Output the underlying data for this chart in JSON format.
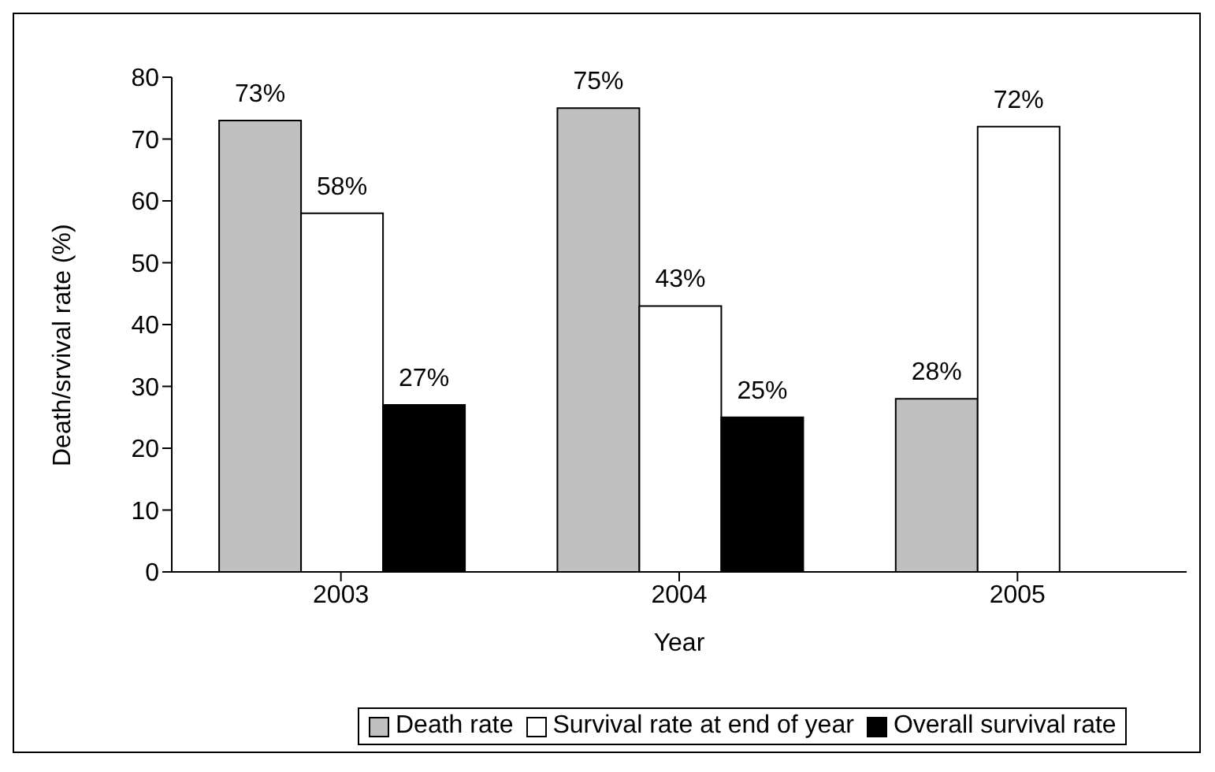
{
  "chart_data": {
    "type": "bar",
    "xlabel": "Year",
    "ylabel": "Death/srvival rate (%)",
    "categories": [
      "2003",
      "2004",
      "2005"
    ],
    "series": [
      {
        "name": "Death rate",
        "color": "#c0c0c0",
        "values": [
          73,
          75,
          28
        ],
        "value_labels": [
          "73%",
          "75%",
          "28%"
        ]
      },
      {
        "name": "Survival rate at end of year",
        "color": "#ffffff",
        "values": [
          58,
          43,
          72
        ],
        "value_labels": [
          "58%",
          "43%",
          "72%"
        ]
      },
      {
        "name": "Overall survival rate",
        "color": "#000000",
        "values": [
          27,
          25,
          null
        ],
        "value_labels": [
          "27%",
          "25%",
          null
        ]
      }
    ],
    "ylim": [
      0,
      80
    ],
    "yticks": [
      0,
      10,
      20,
      30,
      40,
      50,
      60,
      70,
      80
    ],
    "grid": false,
    "legend": "bottom"
  }
}
